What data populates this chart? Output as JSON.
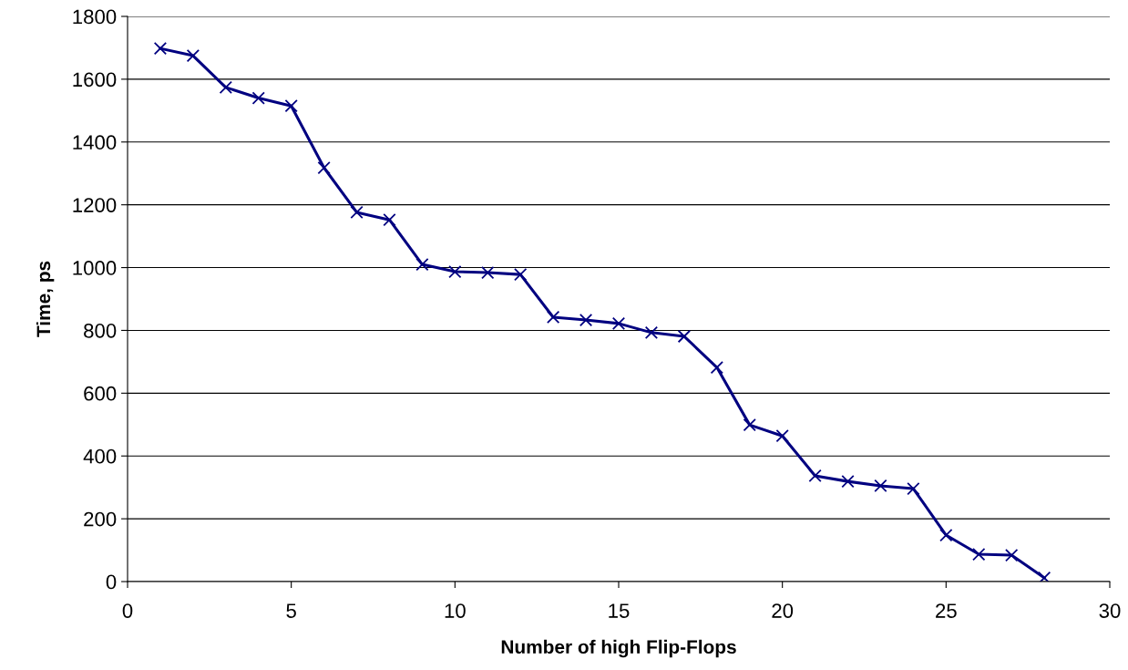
{
  "chart_data": {
    "type": "line",
    "xlabel": "Number of high Flip-Flops",
    "ylabel": "Time, ps",
    "x": [
      1,
      2,
      3,
      4,
      5,
      6,
      7,
      8,
      9,
      10,
      11,
      12,
      13,
      14,
      15,
      16,
      17,
      18,
      19,
      20,
      21,
      22,
      23,
      24,
      25,
      26,
      27,
      28
    ],
    "series": [
      {
        "color": "#000080",
        "values": [
          1698,
          1675,
          1574,
          1540,
          1515,
          1318,
          1176,
          1152,
          1010,
          987,
          984,
          978,
          842,
          833,
          822,
          793,
          781,
          682,
          499,
          464,
          337,
          319,
          305,
          296,
          148,
          87,
          84,
          12
        ]
      }
    ],
    "xlim": [
      0,
      30
    ],
    "xticks": [
      0,
      5,
      10,
      15,
      20,
      25,
      30
    ],
    "ylim": [
      0,
      1800
    ],
    "yticks": [
      0,
      200,
      400,
      600,
      800,
      1000,
      1200,
      1400,
      1600,
      1800
    ],
    "grid": "y",
    "marker": "cross",
    "line_style": "solid",
    "legend": false
  }
}
